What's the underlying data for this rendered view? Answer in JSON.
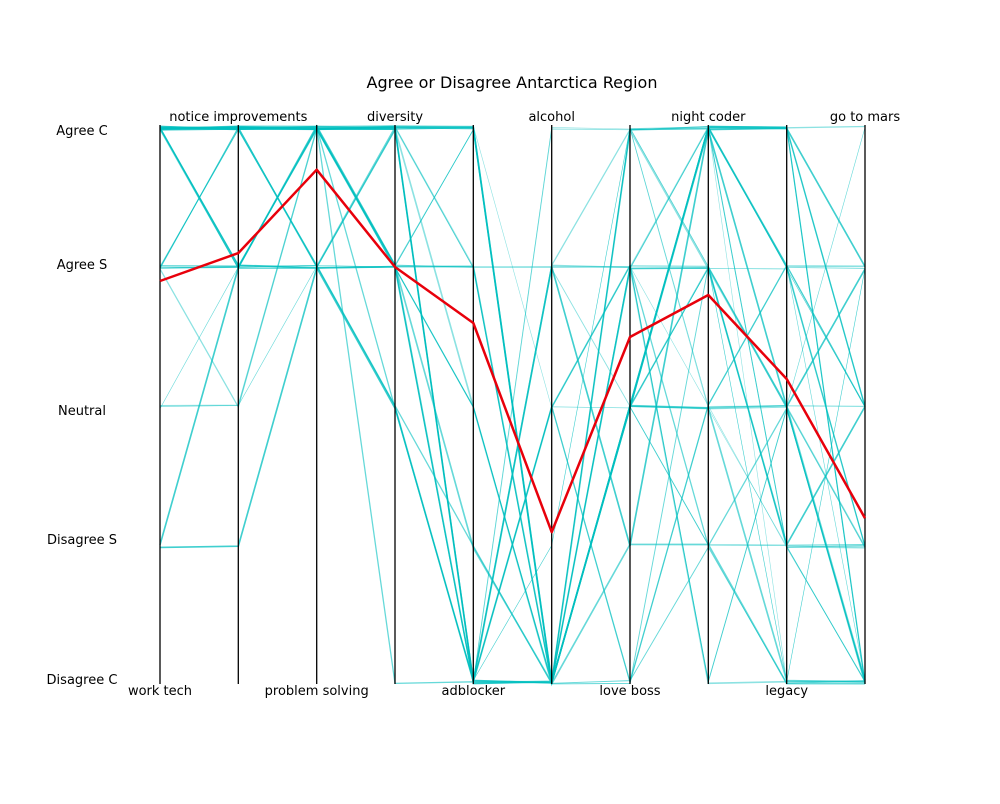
{
  "chart_data": {
    "type": "parallel-coordinates",
    "title": "Agree or Disagree Antarctica Region",
    "axes": [
      "work tech",
      "notice improvements",
      "problem solving",
      "diversity",
      "adblocker",
      "alcohol",
      "love boss",
      "night coder",
      "legacy",
      "go to mars"
    ],
    "axis_label_positions": [
      "bottom",
      "top",
      "bottom",
      "top",
      "bottom",
      "top",
      "bottom",
      "top",
      "bottom",
      "top"
    ],
    "levels": [
      "Agree C",
      "Agree S",
      "Neutral",
      "Disagree S",
      "Disagree C"
    ],
    "level_values": [
      5,
      4,
      3,
      2,
      1
    ],
    "background_line_color": "#00BFBF",
    "highlight_color": "#E8000B",
    "highlight": {
      "values": [
        3.9,
        4.1,
        4.7,
        4.0,
        3.6,
        2.1,
        3.5,
        3.8,
        3.2,
        2.2
      ]
    },
    "responses": [
      [
        5,
        5,
        5,
        5,
        5,
        1,
        5,
        5,
        1,
        1
      ],
      [
        5,
        5,
        5,
        4,
        1,
        1,
        4,
        5,
        2,
        1
      ],
      [
        4,
        4,
        5,
        5,
        1,
        3,
        1,
        3,
        4,
        3
      ],
      [
        5,
        5,
        4,
        3,
        1,
        1,
        5,
        4,
        3,
        2
      ],
      [
        4,
        5,
        5,
        5,
        4,
        1,
        3,
        5,
        4,
        1
      ],
      [
        5,
        4,
        4,
        4,
        3,
        1,
        3,
        2,
        2,
        2
      ],
      [
        3,
        3,
        5,
        5,
        1,
        4,
        4,
        5,
        5,
        3
      ],
      [
        5,
        5,
        5,
        5,
        5,
        1,
        3,
        3,
        3,
        1
      ],
      [
        4,
        4,
        4,
        3,
        1,
        2,
        5,
        4,
        1,
        4
      ],
      [
        5,
        5,
        5,
        5,
        1,
        5,
        5,
        5,
        4,
        2
      ],
      [
        5,
        5,
        4,
        3,
        2,
        1,
        3,
        4,
        3,
        1
      ],
      [
        2,
        4,
        5,
        4,
        1,
        4,
        2,
        5,
        3,
        4
      ],
      [
        5,
        5,
        5,
        5,
        5,
        3,
        4,
        3,
        2,
        1
      ],
      [
        4,
        5,
        5,
        4,
        4,
        1,
        1,
        2,
        1,
        1
      ],
      [
        5,
        4,
        4,
        3,
        1,
        1,
        3,
        5,
        5,
        3
      ],
      [
        5,
        5,
        5,
        5,
        3,
        1,
        5,
        5,
        4,
        4
      ],
      [
        3,
        4,
        4,
        4,
        1,
        3,
        3,
        4,
        2,
        2
      ],
      [
        5,
        5,
        5,
        5,
        5,
        1,
        4,
        1,
        3,
        1
      ],
      [
        4,
        3,
        5,
        5,
        1,
        4,
        5,
        5,
        5,
        5
      ],
      [
        5,
        5,
        5,
        4,
        2,
        1,
        3,
        3,
        1,
        1
      ],
      [
        5,
        5,
        4,
        4,
        5,
        1,
        3,
        4,
        4,
        3
      ],
      [
        4,
        4,
        5,
        5,
        1,
        1,
        5,
        5,
        2,
        2
      ],
      [
        5,
        5,
        5,
        3,
        1,
        3,
        4,
        2,
        3,
        1
      ],
      [
        2,
        2,
        4,
        4,
        4,
        1,
        3,
        5,
        5,
        4
      ],
      [
        5,
        5,
        5,
        5,
        1,
        5,
        5,
        3,
        2,
        1
      ],
      [
        4,
        5,
        5,
        4,
        5,
        1,
        1,
        4,
        3,
        3
      ],
      [
        5,
        4,
        4,
        5,
        1,
        1,
        3,
        5,
        4,
        2
      ],
      [
        5,
        5,
        5,
        5,
        4,
        4,
        4,
        1,
        1,
        1
      ],
      [
        3,
        3,
        4,
        3,
        1,
        1,
        5,
        3,
        3,
        5
      ],
      [
        5,
        5,
        5,
        4,
        3,
        1,
        3,
        5,
        5,
        1
      ],
      [
        4,
        4,
        5,
        5,
        1,
        3,
        4,
        4,
        2,
        2
      ],
      [
        5,
        5,
        4,
        5,
        5,
        1,
        2,
        2,
        1,
        1
      ],
      [
        5,
        5,
        5,
        4,
        1,
        1,
        5,
        5,
        4,
        4
      ],
      [
        4,
        5,
        5,
        5,
        1,
        4,
        3,
        3,
        3,
        2
      ],
      [
        5,
        4,
        5,
        1,
        1,
        1,
        3,
        5,
        5,
        1
      ],
      [
        5,
        5,
        5,
        5,
        5,
        1,
        4,
        4,
        2,
        3
      ]
    ]
  }
}
